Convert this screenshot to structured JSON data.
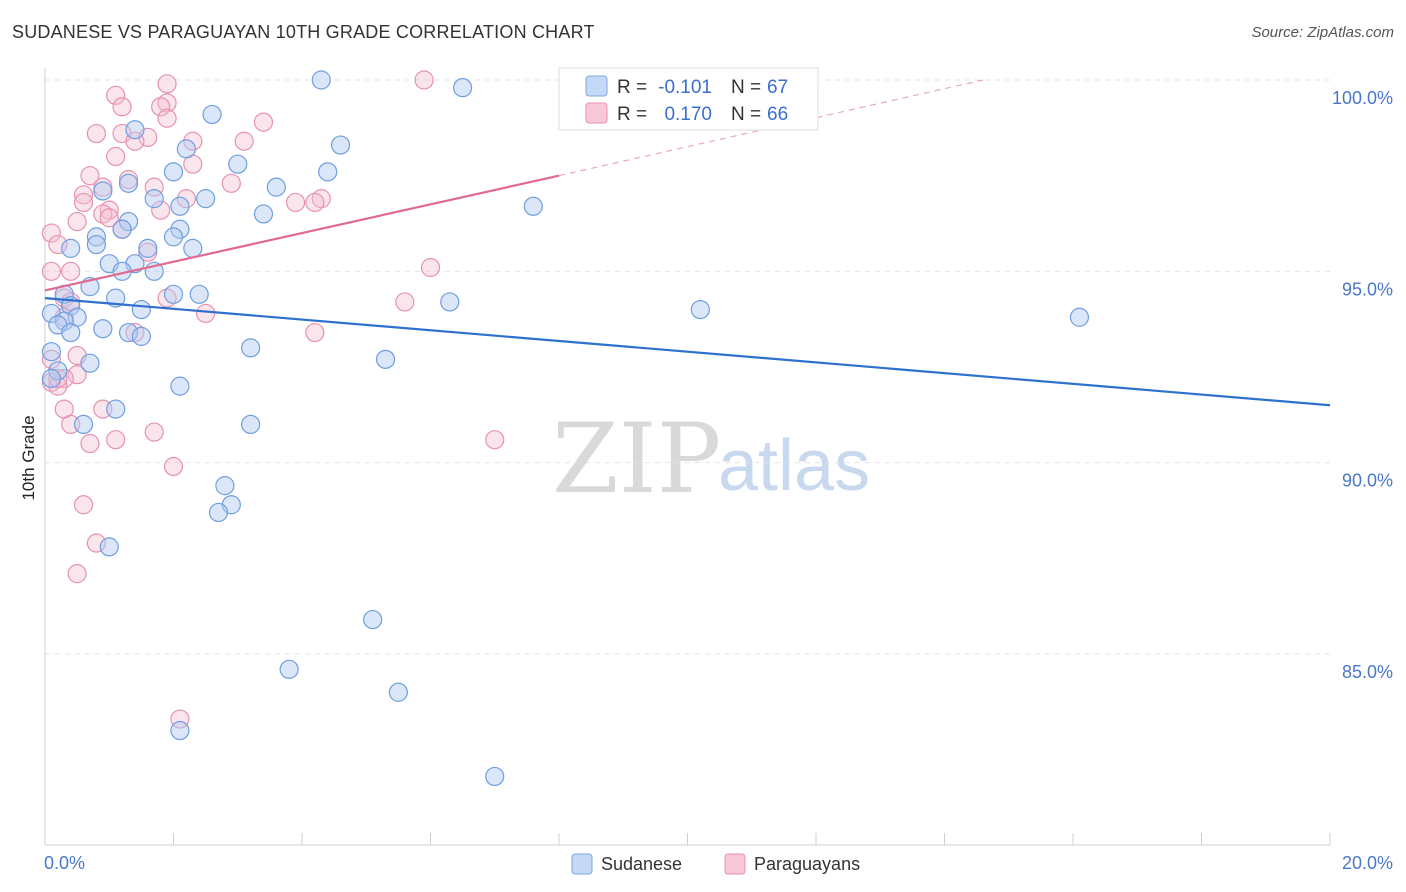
{
  "header": {
    "title": "SUDANESE VS PARAGUAYAN 10TH GRADE CORRELATION CHART",
    "source": "Source: ZipAtlas.com"
  },
  "watermark": {
    "zip": "ZIP",
    "atlas": "atlas"
  },
  "legend": {
    "rows": [
      {
        "r_label": "R =",
        "r_value": "-0.101",
        "n_label": "N =",
        "n_value": "67"
      },
      {
        "r_label": "R =",
        "r_value": "0.170",
        "n_label": "N =",
        "n_value": "66"
      }
    ]
  },
  "chart_data": {
    "type": "scatter",
    "title": "SUDANESE VS PARAGUAYAN 10TH GRADE CORRELATION CHART",
    "xlabel": "",
    "ylabel": "10th Grade",
    "xlim": [
      0,
      20
    ],
    "ylim": [
      80.5,
      100.8
    ],
    "x_tick_labels": [
      "0.0%",
      "20.0%"
    ],
    "y_ticks": [
      85,
      90,
      95,
      100
    ],
    "y_tick_labels": [
      "85.0%",
      "90.0%",
      "95.0%",
      "100.0%"
    ],
    "grid": true,
    "colors": {
      "sudanese": "#5b8fd8",
      "paraguayans": "#e57fa0",
      "sud_line": "#2f6fcf",
      "par_line": "#e06a90"
    },
    "series": [
      {
        "name": "Sudanese",
        "trend": {
          "x0": 0.0,
          "y0": 94.3,
          "x1": 20.0,
          "y1": 91.5
        },
        "points": [
          [
            4.3,
            100.0
          ],
          [
            6.5,
            99.8
          ],
          [
            2.6,
            99.1
          ],
          [
            1.4,
            98.7
          ],
          [
            4.6,
            98.3
          ],
          [
            2.2,
            98.2
          ],
          [
            3.0,
            97.8
          ],
          [
            2.0,
            97.6
          ],
          [
            4.4,
            97.6
          ],
          [
            1.3,
            97.3
          ],
          [
            3.6,
            97.2
          ],
          [
            0.9,
            97.1
          ],
          [
            1.7,
            96.9
          ],
          [
            2.5,
            96.9
          ],
          [
            2.1,
            96.7
          ],
          [
            7.6,
            96.7
          ],
          [
            3.4,
            96.5
          ],
          [
            1.3,
            96.3
          ],
          [
            1.2,
            96.1
          ],
          [
            2.1,
            96.1
          ],
          [
            0.8,
            95.9
          ],
          [
            2.0,
            95.9
          ],
          [
            0.8,
            95.7
          ],
          [
            0.4,
            95.6
          ],
          [
            1.6,
            95.6
          ],
          [
            2.3,
            95.6
          ],
          [
            1.0,
            95.2
          ],
          [
            1.4,
            95.2
          ],
          [
            1.2,
            95.0
          ],
          [
            1.7,
            95.0
          ],
          [
            0.7,
            94.6
          ],
          [
            0.3,
            94.4
          ],
          [
            2.0,
            94.4
          ],
          [
            2.4,
            94.4
          ],
          [
            1.1,
            94.3
          ],
          [
            6.3,
            94.2
          ],
          [
            0.4,
            94.1
          ],
          [
            10.2,
            94.0
          ],
          [
            1.5,
            94.0
          ],
          [
            0.1,
            93.9
          ],
          [
            16.1,
            93.8
          ],
          [
            0.5,
            93.8
          ],
          [
            0.3,
            93.7
          ],
          [
            0.2,
            93.6
          ],
          [
            0.9,
            93.5
          ],
          [
            1.3,
            93.4
          ],
          [
            1.5,
            93.3
          ],
          [
            0.4,
            93.4
          ],
          [
            3.2,
            93.0
          ],
          [
            0.1,
            92.9
          ],
          [
            5.3,
            92.7
          ],
          [
            0.7,
            92.6
          ],
          [
            0.2,
            92.4
          ],
          [
            0.1,
            92.2
          ],
          [
            2.1,
            92.0
          ],
          [
            1.1,
            91.4
          ],
          [
            3.2,
            91.0
          ],
          [
            0.6,
            91.0
          ],
          [
            2.8,
            89.4
          ],
          [
            2.9,
            88.9
          ],
          [
            2.7,
            88.7
          ],
          [
            1.0,
            87.8
          ],
          [
            5.1,
            85.9
          ],
          [
            3.8,
            84.6
          ],
          [
            5.5,
            84.0
          ],
          [
            2.1,
            83.0
          ],
          [
            7.0,
            81.8
          ]
        ]
      },
      {
        "name": "Paraguayans",
        "trend": {
          "x0": 0.0,
          "y0": 94.5,
          "x1": 8.0,
          "y1": 97.5,
          "dash_x1": 14.6,
          "dash_y1": 100.0
        },
        "points": [
          [
            5.9,
            100.0
          ],
          [
            1.9,
            99.9
          ],
          [
            1.1,
            99.6
          ],
          [
            1.9,
            99.4
          ],
          [
            1.2,
            99.3
          ],
          [
            1.8,
            99.3
          ],
          [
            1.9,
            99.0
          ],
          [
            3.4,
            98.9
          ],
          [
            1.2,
            98.6
          ],
          [
            0.8,
            98.6
          ],
          [
            1.6,
            98.5
          ],
          [
            1.4,
            98.4
          ],
          [
            3.1,
            98.4
          ],
          [
            2.3,
            98.4
          ],
          [
            1.1,
            98.0
          ],
          [
            2.3,
            97.8
          ],
          [
            0.7,
            97.5
          ],
          [
            1.3,
            97.4
          ],
          [
            2.9,
            97.3
          ],
          [
            1.7,
            97.2
          ],
          [
            0.9,
            97.2
          ],
          [
            0.6,
            97.0
          ],
          [
            2.2,
            96.9
          ],
          [
            4.3,
            96.9
          ],
          [
            4.2,
            96.8
          ],
          [
            0.6,
            96.8
          ],
          [
            3.9,
            96.8
          ],
          [
            1.0,
            96.6
          ],
          [
            1.8,
            96.6
          ],
          [
            0.9,
            96.5
          ],
          [
            1.0,
            96.4
          ],
          [
            0.5,
            96.3
          ],
          [
            1.2,
            96.1
          ],
          [
            0.1,
            96.0
          ],
          [
            0.2,
            95.7
          ],
          [
            1.6,
            95.5
          ],
          [
            6.0,
            95.1
          ],
          [
            0.4,
            95.0
          ],
          [
            0.1,
            95.0
          ],
          [
            1.9,
            94.3
          ],
          [
            0.3,
            94.3
          ],
          [
            0.4,
            94.2
          ],
          [
            5.6,
            94.2
          ],
          [
            2.5,
            93.9
          ],
          [
            0.3,
            93.8
          ],
          [
            4.2,
            93.4
          ],
          [
            1.4,
            93.4
          ],
          [
            0.5,
            92.8
          ],
          [
            0.1,
            92.7
          ],
          [
            0.5,
            92.3
          ],
          [
            0.3,
            92.2
          ],
          [
            0.1,
            92.1
          ],
          [
            0.2,
            92.0
          ],
          [
            0.3,
            91.4
          ],
          [
            0.9,
            91.4
          ],
          [
            0.4,
            91.0
          ],
          [
            1.7,
            90.8
          ],
          [
            7.0,
            90.6
          ],
          [
            1.1,
            90.6
          ],
          [
            0.7,
            90.5
          ],
          [
            2.0,
            89.9
          ],
          [
            0.6,
            88.9
          ],
          [
            0.8,
            87.9
          ],
          [
            0.5,
            87.1
          ],
          [
            2.1,
            83.3
          ],
          [
            0.2,
            92.2
          ]
        ]
      }
    ]
  },
  "bottom_legend": {
    "items": [
      "Sudanese",
      "Paraguayans"
    ]
  }
}
